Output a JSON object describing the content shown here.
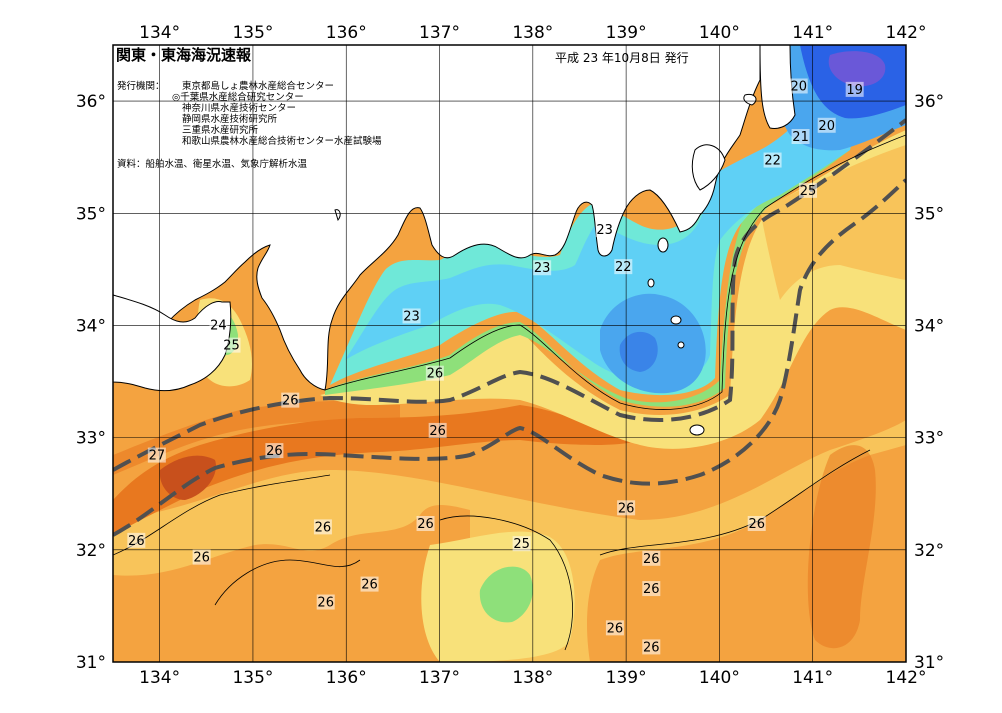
{
  "title": "関東・東海海況速報",
  "date_text": "平成 23 年10月8日 発行",
  "institutions_label": "発行機関：",
  "institutions": [
    "東京都島しょ農林水産総合センター",
    "◎千葉県水産総合研究センター",
    "神奈川県水産技術センター",
    "静岡県水産技術研究所",
    "三重県水産研究所",
    "和歌山県農林水産総合技術センター水産試験場"
  ],
  "data_source": "資料：船舶水温、衛星水温、気象庁解析水温",
  "lon_labels": [
    "134°",
    "135°",
    "136°",
    "137°",
    "138°",
    "139°",
    "140°",
    "141°",
    "142°"
  ],
  "lat_labels": [
    "36°",
    "35°",
    "34°",
    "33°",
    "32°",
    "31°"
  ],
  "map_extent": {
    "lon": [
      133.5,
      142
    ],
    "lat": [
      31,
      36.5
    ]
  },
  "temperature_labels": [
    {
      "text": "19",
      "lon": 141.45,
      "lat": 36.1
    },
    {
      "text": "20",
      "lon": 140.85,
      "lat": 36.13
    },
    {
      "text": "20",
      "lon": 141.15,
      "lat": 35.78
    },
    {
      "text": "21",
      "lon": 140.87,
      "lat": 35.68
    },
    {
      "text": "22",
      "lon": 140.57,
      "lat": 35.47
    },
    {
      "text": "25",
      "lon": 140.95,
      "lat": 35.2
    },
    {
      "text": "23",
      "lon": 138.77,
      "lat": 34.85
    },
    {
      "text": "23",
      "lon": 138.1,
      "lat": 34.51
    },
    {
      "text": "22",
      "lon": 138.97,
      "lat": 34.52
    },
    {
      "text": "23",
      "lon": 136.7,
      "lat": 34.08
    },
    {
      "text": "24",
      "lon": 134.63,
      "lat": 34.0
    },
    {
      "text": "25",
      "lon": 134.77,
      "lat": 33.82
    },
    {
      "text": "26",
      "lon": 136.95,
      "lat": 33.57
    },
    {
      "text": "26",
      "lon": 135.4,
      "lat": 33.33
    },
    {
      "text": "26",
      "lon": 136.98,
      "lat": 33.06
    },
    {
      "text": "27",
      "lon": 133.97,
      "lat": 32.84
    },
    {
      "text": "26",
      "lon": 135.23,
      "lat": 32.88
    },
    {
      "text": "26",
      "lon": 139.0,
      "lat": 32.37
    },
    {
      "text": "26",
      "lon": 140.4,
      "lat": 32.23
    },
    {
      "text": "26",
      "lon": 136.85,
      "lat": 32.23
    },
    {
      "text": "26",
      "lon": 135.75,
      "lat": 32.2
    },
    {
      "text": "26",
      "lon": 133.75,
      "lat": 32.08
    },
    {
      "text": "25",
      "lon": 137.88,
      "lat": 32.05
    },
    {
      "text": "26",
      "lon": 134.45,
      "lat": 31.93
    },
    {
      "text": "26",
      "lon": 139.27,
      "lat": 31.92
    },
    {
      "text": "26",
      "lon": 136.25,
      "lat": 31.69
    },
    {
      "text": "26",
      "lon": 135.78,
      "lat": 31.53
    },
    {
      "text": "26",
      "lon": 139.27,
      "lat": 31.65
    },
    {
      "text": "26",
      "lon": 138.88,
      "lat": 31.3
    },
    {
      "text": "26",
      "lon": 139.27,
      "lat": 31.13
    }
  ],
  "colors": {
    "deep_orange": "#e8781f",
    "orange": "#f4a340",
    "light_orange": "#f8c45a",
    "yellow": "#f8e17a",
    "green": "#8ee07a",
    "cyan": "#6fe8d8",
    "light_blue": "#5fd0f5",
    "blue": "#4aa6ee",
    "dark_blue": "#2a62e6",
    "kuroshio_line": "#505050"
  }
}
